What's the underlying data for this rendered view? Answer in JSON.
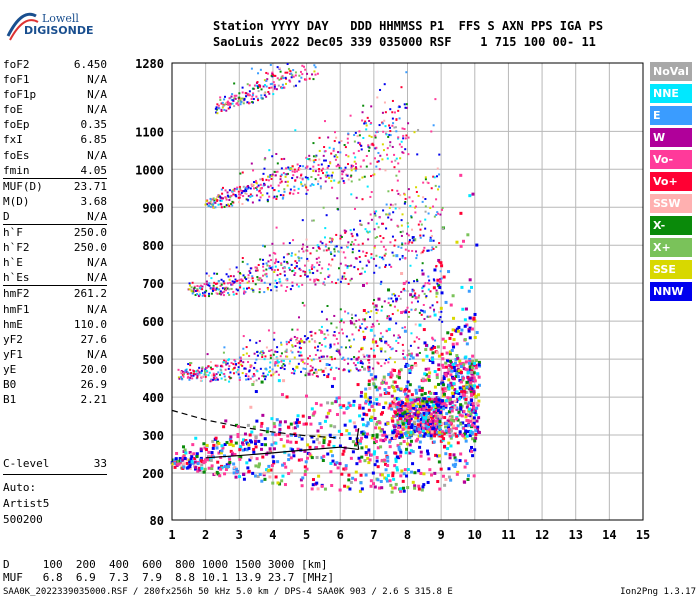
{
  "logo": {
    "line1": "Lowell",
    "line2": "DIGISONDE"
  },
  "header": {
    "line1": "Station YYYY DAY   DDD HHMMSS P1  FFS S AXN PPS IGA PS",
    "line2": "SaoLuis 2022 Dec05 339 035000 RSF    1 715 100 00- 11"
  },
  "params": [
    {
      "name": "foF2",
      "value": "6.450"
    },
    {
      "name": "foF1",
      "value": "N/A"
    },
    {
      "name": "foF1p",
      "value": "N/A"
    },
    {
      "name": "foE",
      "value": "N/A"
    },
    {
      "name": "foEp",
      "value": "0.35"
    },
    {
      "name": "fxI",
      "value": "6.85"
    },
    {
      "name": "foEs",
      "value": "N/A"
    },
    {
      "name": "fmin",
      "value": "4.05"
    },
    {
      "name": "MUF(D)",
      "value": "23.71"
    },
    {
      "name": "M(D)",
      "value": "3.68"
    },
    {
      "name": "D",
      "value": "N/A"
    },
    {
      "name": "h`F",
      "value": "250.0"
    },
    {
      "name": "h`F2",
      "value": "250.0"
    },
    {
      "name": "h`E",
      "value": "N/A"
    },
    {
      "name": "h`Es",
      "value": "N/A"
    },
    {
      "name": "hmF2",
      "value": "261.2"
    },
    {
      "name": "hmF1",
      "value": "N/A"
    },
    {
      "name": "hmE",
      "value": "110.0"
    },
    {
      "name": "yF2",
      "value": "27.6"
    },
    {
      "name": "yF1",
      "value": "N/A"
    },
    {
      "name": "yE",
      "value": "20.0"
    },
    {
      "name": "B0",
      "value": "26.9"
    },
    {
      "name": "B1",
      "value": "2.21"
    }
  ],
  "clevel": {
    "label": "C-level",
    "value": "33"
  },
  "auto": {
    "line1": "Auto:",
    "line2": "Artist5",
    "line3": "500200"
  },
  "dtable": {
    "row1": "D     100  200  400  600  800 1000 1500 3000 [km]",
    "row2": "MUF   6.8  6.9  7.3  7.9  8.8 10.1 13.9 23.7 [MHz]"
  },
  "footer": {
    "left": "SAA0K_2022339035000.RSF / 280fx256h 50 kHz 5.0 km / DPS-4 SAA0K 903 / 2.6 S 315.8 E",
    "right": "Ion2Png 1.3.17"
  },
  "legend": [
    {
      "label": "NoVal",
      "color": "#a8a8a8"
    },
    {
      "label": "NNE",
      "color": "#00e8ff"
    },
    {
      "label": "E",
      "color": "#3a9cff"
    },
    {
      "label": "W",
      "color": "#b0009a"
    },
    {
      "label": "Vo-",
      "color": "#ff3a9a"
    },
    {
      "label": "Vo+",
      "color": "#ff0033"
    },
    {
      "label": "SSW",
      "color": "#ffb0b0"
    },
    {
      "label": "X-",
      "color": "#0a8a0a"
    },
    {
      "label": "X+",
      "color": "#7ac25a"
    },
    {
      "label": "SSE",
      "color": "#d8d800"
    },
    {
      "label": "NNW",
      "color": "#0000ee"
    }
  ],
  "chart_data": {
    "type": "scatter",
    "xlabel": "",
    "ylabel": "",
    "xlim": [
      1,
      15
    ],
    "ylim": [
      80,
      1280
    ],
    "x_ticks": [
      1,
      2,
      3,
      4,
      5,
      6,
      7,
      8,
      9,
      10,
      11,
      12,
      13,
      14,
      15
    ],
    "y_ticks": [
      80,
      200,
      300,
      400,
      500,
      600,
      700,
      800,
      900,
      1000,
      1100,
      1280
    ],
    "grid": true,
    "traces": [
      {
        "name": "hop1",
        "points": [
          [
            1.0,
            230
          ],
          [
            1.5,
            234
          ],
          [
            2.0,
            236
          ],
          [
            2.5,
            240
          ],
          [
            3.0,
            245
          ],
          [
            3.5,
            250
          ],
          [
            4.0,
            256
          ],
          [
            4.5,
            262
          ],
          [
            5.0,
            268
          ],
          [
            5.5,
            276
          ],
          [
            6.0,
            285
          ],
          [
            6.5,
            296
          ],
          [
            7.0,
            306
          ],
          [
            7.5,
            318
          ],
          [
            8.0,
            330
          ],
          [
            8.5,
            346
          ],
          [
            9.0,
            362
          ],
          [
            9.5,
            385
          ],
          [
            10.0,
            410
          ]
        ]
      },
      {
        "name": "hop2",
        "points": [
          [
            1.2,
            460
          ],
          [
            1.5,
            462
          ],
          [
            2.0,
            465
          ],
          [
            2.5,
            470
          ],
          [
            3.0,
            476
          ],
          [
            3.5,
            484
          ],
          [
            4.0,
            492
          ],
          [
            4.5,
            502
          ],
          [
            5.0,
            512
          ],
          [
            5.5,
            524
          ],
          [
            6.0,
            536
          ],
          [
            6.5,
            548
          ],
          [
            7.0,
            562
          ],
          [
            7.5,
            580
          ],
          [
            8.0,
            600
          ],
          [
            8.5,
            625
          ],
          [
            9.0,
            655
          ]
        ]
      },
      {
        "name": "hop3",
        "points": [
          [
            1.5,
            680
          ],
          [
            2.0,
            684
          ],
          [
            2.5,
            692
          ],
          [
            3.0,
            702
          ],
          [
            3.5,
            712
          ],
          [
            4.0,
            722
          ],
          [
            4.5,
            734
          ],
          [
            5.0,
            746
          ],
          [
            5.5,
            760
          ],
          [
            6.0,
            775
          ],
          [
            6.5,
            790
          ],
          [
            7.0,
            810
          ],
          [
            7.5,
            830
          ],
          [
            8.0,
            855
          ],
          [
            8.5,
            880
          ],
          [
            9.0,
            905
          ]
        ]
      },
      {
        "name": "hop4",
        "points": [
          [
            2.0,
            910
          ],
          [
            2.5,
            920
          ],
          [
            3.0,
            932
          ],
          [
            3.5,
            944
          ],
          [
            4.0,
            958
          ],
          [
            4.5,
            972
          ],
          [
            5.0,
            988
          ],
          [
            5.5,
            1005
          ],
          [
            6.0,
            1022
          ],
          [
            6.5,
            1042
          ],
          [
            7.0,
            1062
          ],
          [
            7.5,
            1085
          ],
          [
            8.0,
            1110
          ]
        ]
      },
      {
        "name": "hop5",
        "points": [
          [
            2.3,
            1160
          ],
          [
            2.8,
            1180
          ],
          [
            3.3,
            1200
          ],
          [
            3.8,
            1222
          ],
          [
            4.3,
            1245
          ],
          [
            4.8,
            1268
          ],
          [
            5.3,
            1290
          ]
        ]
      }
    ],
    "model_lower": [
      [
        2.0,
        240
      ],
      [
        3.0,
        246
      ],
      [
        4.0,
        253
      ],
      [
        5.0,
        261
      ],
      [
        6.0,
        268
      ],
      [
        6.55,
        262
      ]
    ],
    "model_upper_dashed": [
      [
        1.0,
        365
      ],
      [
        2.0,
        340
      ],
      [
        3.0,
        322
      ],
      [
        4.0,
        308
      ],
      [
        5.0,
        298
      ],
      [
        6.0,
        292
      ]
    ],
    "cusp": [
      [
        6.55,
        262
      ],
      [
        6.5,
        290
      ],
      [
        6.55,
        318
      ]
    ]
  }
}
